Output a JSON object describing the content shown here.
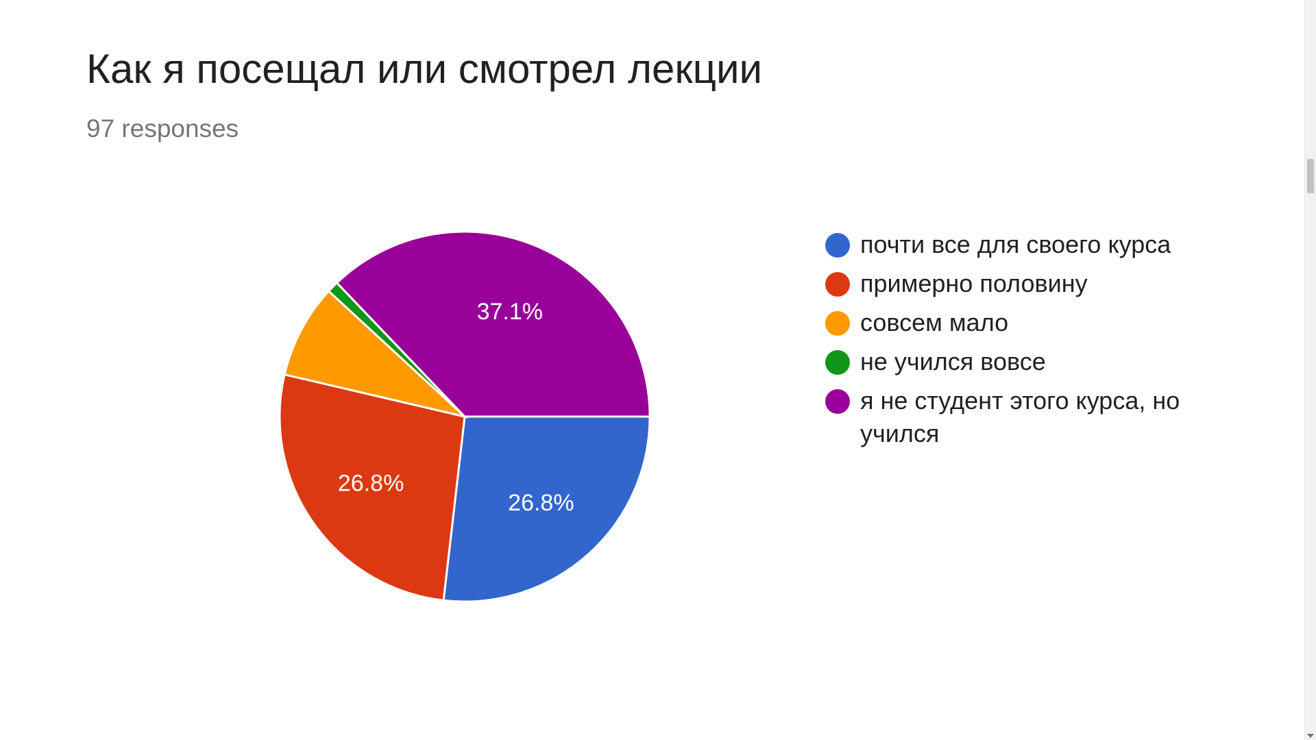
{
  "title": "Как я посещал или смотрел лекции",
  "subtitle": "97 responses",
  "chart_data": {
    "type": "pie",
    "title": "Как я посещал или смотрел лекции",
    "categories": [
      "почти все для своего курса",
      "примерно половину",
      "совсем мало",
      "не учился вовсе",
      "я не студент этого курса, но учился"
    ],
    "values": [
      26.8,
      26.8,
      8.2,
      1.0,
      37.1
    ],
    "data_labels": [
      "26.8%",
      "26.8%",
      "",
      "",
      "37.1%"
    ],
    "colors": [
      "#3366cc",
      "#dc3912",
      "#ff9900",
      "#109618",
      "#990099"
    ],
    "legend": "right",
    "start": "3 o'clock, clockwise"
  }
}
